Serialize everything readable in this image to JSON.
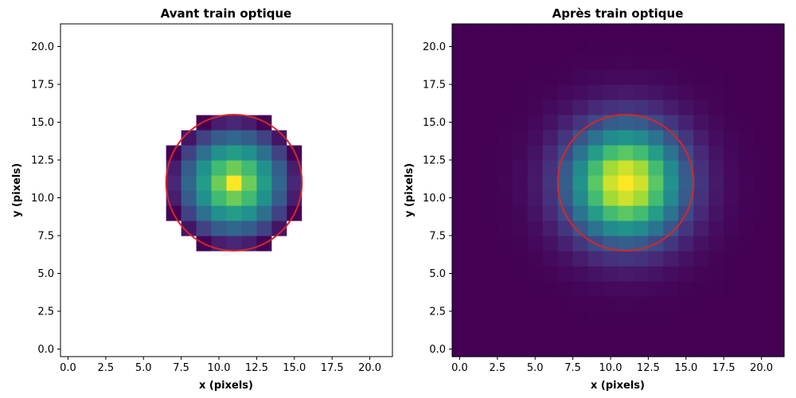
{
  "chart_data": [
    {
      "type": "heatmap",
      "title": "Avant train optique",
      "xlabel": "x (pixels)",
      "ylabel": "y (pixels)",
      "xlim": [
        -0.5,
        21.5
      ],
      "ylim": [
        -0.5,
        21.5
      ],
      "xticks": [
        "0.0",
        "2.5",
        "5.0",
        "7.5",
        "10.0",
        "12.5",
        "15.0",
        "17.5",
        "20.0"
      ],
      "yticks": [
        "0.0",
        "2.5",
        "5.0",
        "7.5",
        "10.0",
        "12.5",
        "15.0",
        "17.5",
        "20.0"
      ],
      "grid_size": [
        22,
        22
      ],
      "mask_outside": true,
      "mask_color": "#ffffff",
      "intensity_model": {
        "kind": "linear_disk",
        "center": [
          11,
          11
        ],
        "radius": 4.5
      },
      "circle": {
        "center": [
          11.0,
          11.0
        ],
        "radius": 4.5,
        "color": "#d62728"
      },
      "colormap": "viridis"
    },
    {
      "type": "heatmap",
      "title": "Après train optique",
      "xlabel": "x (pixels)",
      "ylabel": "y (pixels)",
      "xlim": [
        -0.5,
        21.5
      ],
      "ylim": [
        -0.5,
        21.5
      ],
      "xticks": [
        "0.0",
        "2.5",
        "5.0",
        "7.5",
        "10.0",
        "12.5",
        "15.0",
        "17.5",
        "20.0"
      ],
      "yticks": [
        "0.0",
        "2.5",
        "5.0",
        "7.5",
        "10.0",
        "12.5",
        "15.0",
        "17.5",
        "20.0"
      ],
      "grid_size": [
        22,
        22
      ],
      "mask_outside": false,
      "intensity_model": {
        "kind": "gaussian",
        "center": [
          11,
          11
        ],
        "sigma": 2.6
      },
      "circle": {
        "center": [
          11.0,
          11.0
        ],
        "radius": 4.5,
        "color": "#d62728"
      },
      "colormap": "viridis"
    }
  ]
}
